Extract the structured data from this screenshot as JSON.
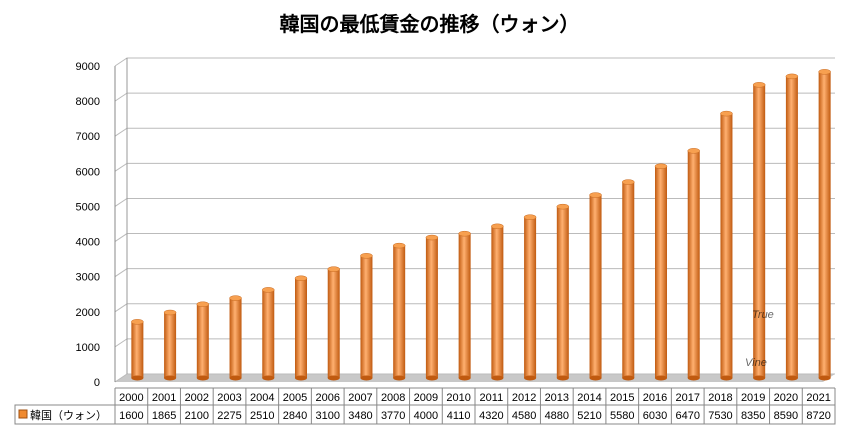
{
  "chart_data": {
    "type": "bar",
    "title": "韓国の最低賃金の推移（ウォン）",
    "categories": [
      "2000",
      "2001",
      "2002",
      "2003",
      "2004",
      "2005",
      "2006",
      "2007",
      "2008",
      "2009",
      "2010",
      "2011",
      "2012",
      "2013",
      "2014",
      "2015",
      "2016",
      "2017",
      "2018",
      "2019",
      "2020",
      "2021"
    ],
    "series": [
      {
        "name": "韓国（ウォン）",
        "values": [
          1600,
          1865,
          2100,
          2275,
          2510,
          2840,
          3100,
          3480,
          3770,
          4000,
          4110,
          4320,
          4580,
          4880,
          5210,
          5580,
          6030,
          6470,
          7530,
          8350,
          8590,
          8720
        ],
        "color": "#F08A30"
      }
    ],
    "yticks": [
      0,
      1000,
      2000,
      3000,
      4000,
      5000,
      6000,
      7000,
      8000,
      9000
    ],
    "ylim": [
      0,
      9000
    ],
    "grid": true,
    "legend": "data-table-left",
    "watermark": "True Vine"
  }
}
